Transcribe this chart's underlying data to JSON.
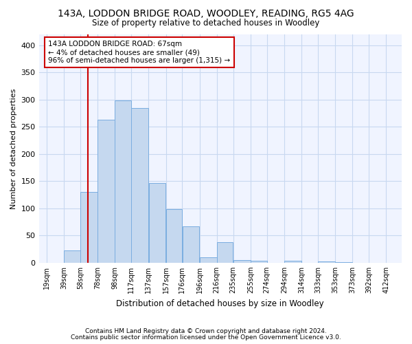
{
  "title1": "143A, LODDON BRIDGE ROAD, WOODLEY, READING, RG5 4AG",
  "title2": "Size of property relative to detached houses in Woodley",
  "xlabel": "Distribution of detached houses by size in Woodley",
  "ylabel": "Number of detached properties",
  "footnote1": "Contains HM Land Registry data © Crown copyright and database right 2024.",
  "footnote2": "Contains public sector information licensed under the Open Government Licence v3.0.",
  "annotation_line1": "143A LODDON BRIDGE ROAD: 67sqm",
  "annotation_line2": "← 4% of detached houses are smaller (49)",
  "annotation_line3": "96% of semi-detached houses are larger (1,315) →",
  "bar_left_edges": [
    19,
    39,
    58,
    78,
    98,
    117,
    137,
    157,
    176,
    196,
    216,
    235,
    255,
    274,
    294,
    314,
    333,
    353,
    373,
    392
  ],
  "bar_widths": [
    20,
    19,
    20,
    20,
    19,
    20,
    20,
    19,
    20,
    20,
    19,
    20,
    19,
    20,
    20,
    19,
    20,
    20,
    19,
    20
  ],
  "bar_heights": [
    0,
    22,
    130,
    263,
    298,
    285,
    146,
    98,
    67,
    10,
    38,
    5,
    4,
    0,
    4,
    0,
    2,
    1,
    0,
    0
  ],
  "tick_labels": [
    "19sqm",
    "39sqm",
    "58sqm",
    "78sqm",
    "98sqm",
    "117sqm",
    "137sqm",
    "157sqm",
    "176sqm",
    "196sqm",
    "216sqm",
    "235sqm",
    "255sqm",
    "274sqm",
    "294sqm",
    "314sqm",
    "333sqm",
    "353sqm",
    "373sqm",
    "392sqm",
    "412sqm"
  ],
  "tick_positions": [
    19,
    39,
    58,
    78,
    98,
    117,
    137,
    157,
    176,
    196,
    216,
    235,
    255,
    274,
    294,
    314,
    333,
    353,
    373,
    392,
    412
  ],
  "bar_color": "#c5d8ef",
  "bar_edge_color": "#7aade0",
  "vline_x": 67,
  "vline_color": "#cc0000",
  "annotation_box_color": "#cc0000",
  "bg_color": "#ffffff",
  "plot_bg_color": "#f0f4ff",
  "grid_color": "#c8d8f0",
  "ylim": [
    0,
    420
  ],
  "yticks": [
    0,
    50,
    100,
    150,
    200,
    250,
    300,
    350,
    400
  ],
  "xlim_left": 10,
  "xlim_right": 430
}
